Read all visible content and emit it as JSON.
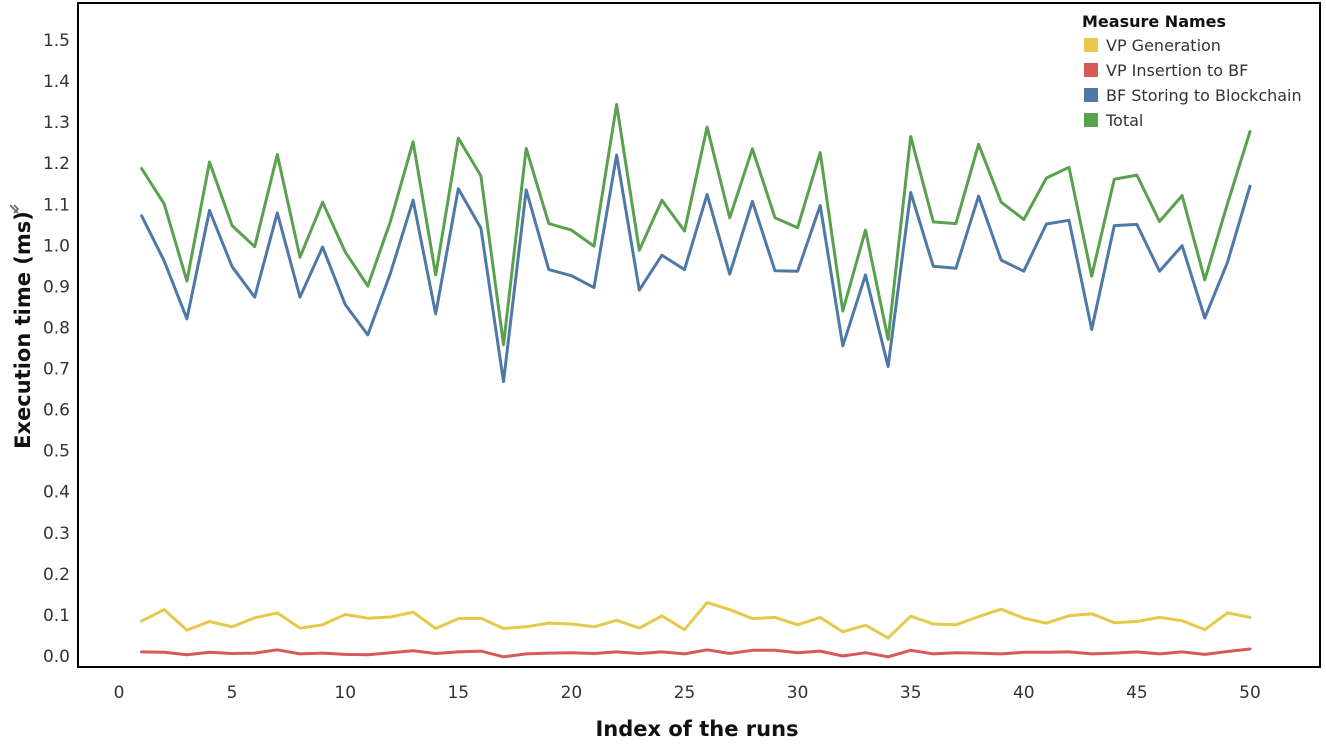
{
  "chart_data": {
    "type": "line",
    "title": "",
    "xlabel": "Index of the runs",
    "ylabel": "Execution time (ms)",
    "xlim": [
      0,
      50
    ],
    "x_ticks": [
      "0",
      "5",
      "10",
      "15",
      "20",
      "25",
      "30",
      "35",
      "40",
      "45",
      "50"
    ],
    "ylim": [
      0,
      1.5
    ],
    "y_ticks": [
      "0.0",
      "0.1",
      "0.2",
      "0.3",
      "0.4",
      "0.5",
      "0.6",
      "0.7",
      "0.8",
      "0.9",
      "1.0",
      "1.1",
      "1.2",
      "1.3",
      "1.4",
      "1.5"
    ],
    "grid": false,
    "legend": {
      "title": "Measure Names",
      "position": "top-right"
    },
    "x": [
      1,
      2,
      3,
      4,
      5,
      6,
      7,
      8,
      9,
      10,
      11,
      12,
      13,
      14,
      15,
      16,
      17,
      18,
      19,
      20,
      21,
      22,
      23,
      24,
      25,
      26,
      27,
      28,
      29,
      30,
      31,
      32,
      33,
      34,
      35,
      36,
      37,
      38,
      39,
      40,
      41,
      42,
      43,
      44,
      45,
      46,
      47,
      48,
      49,
      50
    ],
    "series": [
      {
        "name": "VP Generation",
        "color": "#e6c84a",
        "values": [
          0.085,
          0.113,
          0.063,
          0.084,
          0.071,
          0.093,
          0.105,
          0.068,
          0.076,
          0.101,
          0.092,
          0.095,
          0.107,
          0.067,
          0.091,
          0.092,
          0.067,
          0.071,
          0.08,
          0.078,
          0.071,
          0.087,
          0.068,
          0.098,
          0.064,
          0.13,
          0.113,
          0.091,
          0.094,
          0.076,
          0.094,
          0.059,
          0.075,
          0.044,
          0.097,
          0.078,
          0.076,
          0.096,
          0.114,
          0.092,
          0.08,
          0.098,
          0.103,
          0.081,
          0.084,
          0.094,
          0.086,
          0.064,
          0.105,
          0.094
        ]
      },
      {
        "name": "VP Insertion to BF",
        "color": "#d65a5a",
        "values": [
          0.01,
          0.009,
          0.003,
          0.009,
          0.006,
          0.007,
          0.015,
          0.005,
          0.007,
          0.004,
          0.003,
          0.008,
          0.013,
          0.006,
          0.01,
          0.012,
          -0.002,
          0.005,
          0.007,
          0.008,
          0.006,
          0.01,
          0.006,
          0.01,
          0.005,
          0.015,
          0.006,
          0.014,
          0.014,
          0.008,
          0.012,
          0.0,
          0.008,
          -0.002,
          0.014,
          0.005,
          0.008,
          0.007,
          0.005,
          0.009,
          0.009,
          0.01,
          0.005,
          0.007,
          0.01,
          0.005,
          0.01,
          0.004,
          0.011,
          0.017
        ]
      },
      {
        "name": "BF Storing to Blockchain",
        "color": "#4e79a7",
        "values": [
          1.072,
          0.962,
          0.821,
          1.085,
          0.948,
          0.874,
          1.079,
          0.874,
          0.996,
          0.856,
          0.782,
          0.932,
          1.11,
          0.833,
          1.138,
          1.042,
          0.668,
          1.135,
          0.941,
          0.926,
          0.897,
          1.22,
          0.891,
          0.976,
          0.941,
          1.124,
          0.93,
          1.107,
          0.938,
          0.937,
          1.097,
          0.755,
          0.928,
          0.705,
          1.129,
          0.949,
          0.944,
          1.12,
          0.964,
          0.937,
          1.052,
          1.061,
          0.795,
          1.048,
          1.051,
          0.937,
          0.999,
          0.823,
          0.958,
          1.144
        ]
      },
      {
        "name": "Total",
        "color": "#59a14f",
        "values": [
          1.187,
          1.101,
          0.913,
          1.203,
          1.048,
          0.997,
          1.221,
          0.971,
          1.105,
          0.984,
          0.901,
          1.058,
          1.252,
          0.928,
          1.261,
          1.169,
          0.758,
          1.236,
          1.053,
          1.037,
          0.998,
          1.343,
          0.988,
          1.11,
          1.035,
          1.288,
          1.067,
          1.235,
          1.067,
          1.043,
          1.226,
          0.84,
          1.037,
          0.771,
          1.265,
          1.057,
          1.053,
          1.246,
          1.105,
          1.063,
          1.164,
          1.19,
          0.925,
          1.161,
          1.171,
          1.058,
          1.121,
          0.916,
          1.101,
          1.277
        ]
      }
    ]
  }
}
